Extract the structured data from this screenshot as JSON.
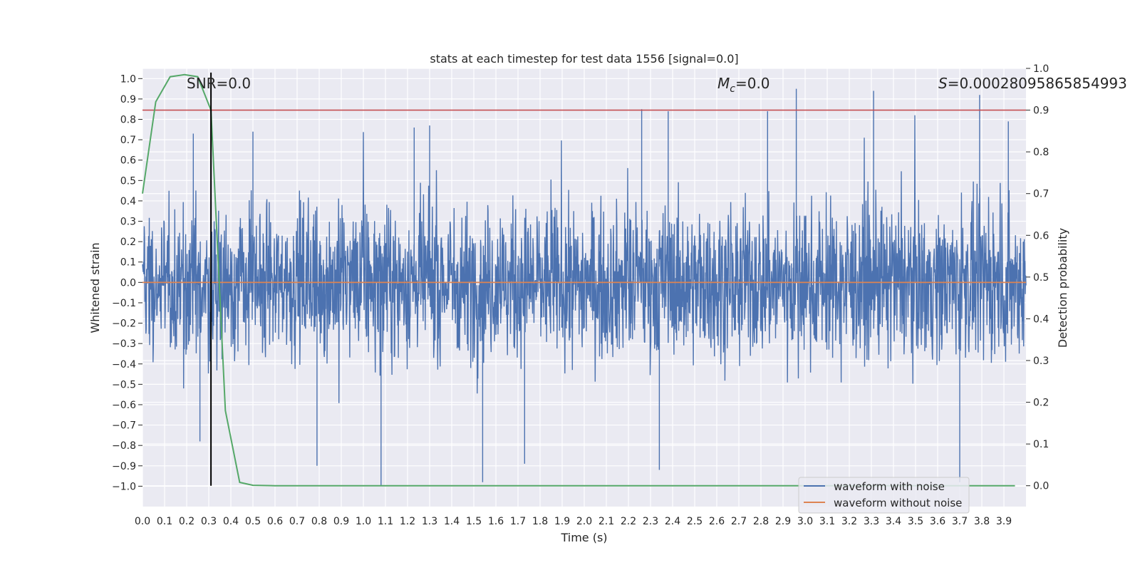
{
  "chart_data": {
    "type": "line",
    "title": "stats at each timestep for test data 1556 [signal=0.0]",
    "xlabel": "Time (s)",
    "ylabel": "Whitened strain",
    "y2label": "Detection probability",
    "xlim": [
      0.0,
      4.0
    ],
    "ylim": [
      -1.1,
      1.05
    ],
    "y2lim": [
      -0.05,
      1.0
    ],
    "grid": true,
    "xticks": [
      "0.0",
      "0.1",
      "0.2",
      "0.3",
      "0.4",
      "0.5",
      "0.6",
      "0.7",
      "0.8",
      "0.9",
      "1.0",
      "1.1",
      "1.2",
      "1.3",
      "1.4",
      "1.5",
      "1.6",
      "1.7",
      "1.8",
      "1.9",
      "2.0",
      "2.1",
      "2.2",
      "2.3",
      "2.4",
      "2.5",
      "2.6",
      "2.7",
      "2.8",
      "2.9",
      "3.0",
      "3.1",
      "3.2",
      "3.3",
      "3.4",
      "3.5",
      "3.6",
      "3.7",
      "3.8",
      "3.9"
    ],
    "yticks": [
      "1.0",
      "0.9",
      "0.8",
      "0.7",
      "0.6",
      "0.5",
      "0.4",
      "0.3",
      "0.2",
      "0.1",
      "0.0",
      "−0.1",
      "−0.2",
      "−0.3",
      "−0.4",
      "−0.5",
      "−0.6",
      "−0.7",
      "−0.8",
      "−0.9",
      "−1.0"
    ],
    "y2ticks": [
      "1.0",
      "0.9",
      "0.8",
      "0.7",
      "0.6",
      "0.5",
      "0.4",
      "0.3",
      "0.2",
      "0.1",
      "0.0"
    ],
    "annotations": {
      "snr": "SNR=0.0",
      "mc_symbol": "M",
      "mc_sub": "c",
      "mc_value": "=0.0",
      "s_symbol": "S",
      "s_value": "=0.00028095865854993"
    },
    "legend": {
      "placement": "lower-right",
      "entries": [
        "waveform with noise",
        "waveform without noise"
      ]
    },
    "series": [
      {
        "name": "waveform with noise",
        "color": "#4c72b0",
        "description": "whitened noise, approx. uniform amplitude, t = 0.0 to 4.0 s"
      },
      {
        "name": "waveform without noise",
        "color": "#dd8452",
        "y": 0.0
      },
      {
        "name": "detection probability",
        "color": "#55a868",
        "axis": "right",
        "t": [
          0.0,
          0.06,
          0.125,
          0.19,
          0.25,
          0.31,
          0.375,
          0.44,
          0.5,
          0.6,
          0.8,
          1.0,
          2.0,
          3.0,
          3.95
        ],
        "p": [
          0.7,
          0.92,
          0.98,
          0.985,
          0.98,
          0.9,
          0.18,
          0.008,
          0.001,
          0.0,
          0.0,
          0.0,
          0.0,
          0.0,
          0.0
        ]
      },
      {
        "name": "threshold",
        "color": "#c44e52",
        "axis": "right",
        "y": 0.9
      },
      {
        "name": "event marker",
        "color": "#000000",
        "x": 0.31
      }
    ],
    "spike_peaks": [
      {
        "t": 0.23,
        "v": 0.73
      },
      {
        "t": 0.5,
        "v": 0.74
      },
      {
        "t": 1.23,
        "v": 0.76
      },
      {
        "t": 1.3,
        "v": 0.77
      },
      {
        "t": 2.26,
        "v": 0.85
      },
      {
        "t": 2.38,
        "v": 0.84
      },
      {
        "t": 2.83,
        "v": 0.84
      },
      {
        "t": 2.96,
        "v": 0.95
      },
      {
        "t": 3.31,
        "v": 0.94
      },
      {
        "t": 3.79,
        "v": 0.92
      },
      {
        "t": 3.92,
        "v": 0.79
      },
      {
        "t": 0.26,
        "v": -0.78
      },
      {
        "t": 0.79,
        "v": -0.9
      },
      {
        "t": 1.08,
        "v": -1.0
      },
      {
        "t": 1.54,
        "v": -0.98
      },
      {
        "t": 1.73,
        "v": -0.89
      },
      {
        "t": 2.34,
        "v": -0.92
      },
      {
        "t": 3.7,
        "v": -0.98
      }
    ]
  }
}
